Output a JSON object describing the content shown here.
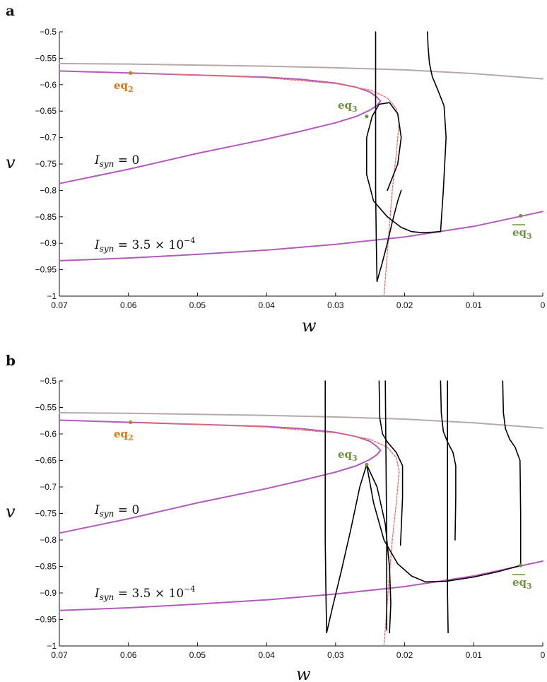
{
  "colors": {
    "purple": "#b05cb8",
    "gray": "#b7a9a9",
    "red_dashed": "#e8706a",
    "orange": "#d47a1a",
    "green": "#6f9440",
    "black": "#000000"
  },
  "chart_data": [
    {
      "type": "line",
      "panel_label": "a",
      "xlabel": "w",
      "ylabel": "v",
      "x_reversed": true,
      "xlim": [
        0.07,
        0
      ],
      "ylim": [
        -1,
        -0.5
      ],
      "x_ticks": [
        "0.07",
        "0.06",
        "0.05",
        "0.04",
        "0.03",
        "0.02",
        "0.01",
        "0"
      ],
      "y_ticks": [
        "-0.5",
        "-0.55",
        "-0.6",
        "-0.65",
        "-0.7",
        "-0.75",
        "-0.8",
        "-0.85",
        "-0.9",
        "-0.95",
        "-1"
      ],
      "annotations": {
        "isyn0": {
          "text": "I_syn = 0",
          "pre": "I",
          "sub": "syn",
          "post": " = 0"
        },
        "isyn35": {
          "text": "I_syn = 3.5 × 10^-4",
          "pre": "I",
          "sub": "syn",
          "mid": " = 3.5 × 10",
          "sup": "−4"
        },
        "eq2": {
          "text": "eq2",
          "main": "eq",
          "sub": "2"
        },
        "eq3": {
          "text": "eq3",
          "main": "eq",
          "sub": "3"
        },
        "eq3bar": {
          "text": "eq3 (bar)",
          "main": "eq",
          "sub": "3"
        }
      },
      "series": [
        {
          "role": "upper-nullcline-gray",
          "x": [
            0.07,
            0.06,
            0.05,
            0.04,
            0.03,
            0.02,
            0.01,
            0
          ],
          "y": [
            -0.56,
            -0.561,
            -0.563,
            -0.565,
            -0.568,
            -0.572,
            -0.579,
            -0.589
          ]
        },
        {
          "role": "nullcline-isyn0-upper",
          "x": [
            0.07,
            0.06,
            0.05,
            0.04,
            0.035,
            0.03,
            0.027,
            0.025,
            0.024,
            0.0235
          ],
          "y": [
            -0.574,
            -0.578,
            -0.582,
            -0.586,
            -0.59,
            -0.597,
            -0.605,
            -0.614,
            -0.624,
            -0.631
          ]
        },
        {
          "role": "nullcline-isyn0-lower",
          "x": [
            0.0235,
            0.024,
            0.025,
            0.027,
            0.03,
            0.035,
            0.04,
            0.05,
            0.06,
            0.07
          ],
          "y": [
            -0.631,
            -0.639,
            -0.648,
            -0.66,
            -0.672,
            -0.688,
            -0.703,
            -0.73,
            -0.76,
            -0.787
          ]
        },
        {
          "role": "nullcline-isyn35",
          "x": [
            0.07,
            0.06,
            0.05,
            0.04,
            0.03,
            0.02,
            0.01,
            0
          ],
          "y": [
            -0.933,
            -0.928,
            -0.921,
            -0.913,
            -0.902,
            -0.888,
            -0.868,
            -0.84
          ]
        },
        {
          "role": "red-dashed",
          "x": [
            0.058,
            0.05,
            0.04,
            0.03,
            0.025,
            0.0225,
            0.0212,
            0.0208,
            0.0212,
            0.0218,
            0.0224,
            0.023
          ],
          "y": [
            -0.578,
            -0.582,
            -0.587,
            -0.598,
            -0.61,
            -0.625,
            -0.645,
            -0.67,
            -0.73,
            -0.8,
            -0.9,
            -1
          ]
        },
        {
          "role": "trajectory-a-1",
          "x": [
            0.0242,
            0.0242,
            0.0242,
            0.0242,
            0.0241,
            0.024
          ],
          "y": [
            -0.5,
            -0.6,
            -0.7,
            -0.8,
            -0.9,
            -0.972
          ]
        },
        {
          "role": "trajectory-a-2",
          "x": [
            0.024,
            0.0233,
            0.0225,
            0.0218,
            0.021,
            0.0205
          ],
          "y": [
            -0.972,
            -0.94,
            -0.9,
            -0.86,
            -0.82,
            -0.8
          ]
        },
        {
          "role": "trajectory-a-3",
          "x": [
            0.0167,
            0.0166,
            0.0164,
            0.016,
            0.0152,
            0.0143,
            0.014,
            0.0144,
            0.0148
          ],
          "y": [
            -0.5,
            -0.53,
            -0.56,
            -0.585,
            -0.61,
            -0.64,
            -0.7,
            -0.8,
            -0.878
          ]
        },
        {
          "role": "trajectory-a-4",
          "x": [
            0.0148,
            0.016,
            0.0175,
            0.019,
            0.0205,
            0.0225,
            0.0245,
            0.0255,
            0.0255,
            0.0247,
            0.0237,
            0.0222,
            0.021,
            0.0205,
            0.021,
            0.0225
          ],
          "y": [
            -0.878,
            -0.879,
            -0.88,
            -0.878,
            -0.87,
            -0.85,
            -0.82,
            -0.77,
            -0.7,
            -0.66,
            -0.637,
            -0.634,
            -0.655,
            -0.7,
            -0.75,
            -0.8
          ]
        }
      ],
      "points": [
        {
          "label": "eq2",
          "x": 0.0597,
          "y": -0.578
        },
        {
          "label": "eq3",
          "x": 0.0255,
          "y": -0.66
        },
        {
          "label": "eq3bar",
          "x": 0.0032,
          "y": -0.848
        }
      ]
    },
    {
      "type": "line",
      "panel_label": "b",
      "xlabel": "w",
      "ylabel": "v",
      "x_reversed": true,
      "xlim": [
        0.07,
        0
      ],
      "ylim": [
        -1,
        -0.5
      ],
      "x_ticks": [
        "0.07",
        "0.06",
        "0.05",
        "0.04",
        "0.03",
        "0.02",
        "0.01",
        "0"
      ],
      "y_ticks": [
        "-0.5",
        "-0.55",
        "-0.6",
        "-0.65",
        "-0.7",
        "-0.75",
        "-0.8",
        "-0.85",
        "-0.9",
        "-0.95",
        "-1"
      ],
      "annotations": {
        "isyn0": {
          "text": "I_syn = 0",
          "pre": "I",
          "sub": "syn",
          "post": " = 0"
        },
        "isyn35": {
          "text": "I_syn = 3.5 × 10^-4",
          "pre": "I",
          "sub": "syn",
          "mid": " = 3.5 × 10",
          "sup": "−4"
        },
        "eq2": {
          "text": "eq2",
          "main": "eq",
          "sub": "2"
        },
        "eq3": {
          "text": "eq3",
          "main": "eq",
          "sub": "3"
        },
        "eq3bar": {
          "text": "eq3 (bar)",
          "main": "eq",
          "sub": "3"
        }
      },
      "series": [
        {
          "role": "upper-nullcline-gray",
          "x": [
            0.07,
            0.06,
            0.05,
            0.04,
            0.03,
            0.02,
            0.01,
            0
          ],
          "y": [
            -0.56,
            -0.561,
            -0.563,
            -0.565,
            -0.568,
            -0.572,
            -0.579,
            -0.589
          ]
        },
        {
          "role": "nullcline-isyn0-upper",
          "x": [
            0.07,
            0.06,
            0.05,
            0.04,
            0.035,
            0.03,
            0.027,
            0.025,
            0.024,
            0.0235
          ],
          "y": [
            -0.574,
            -0.578,
            -0.582,
            -0.586,
            -0.59,
            -0.597,
            -0.605,
            -0.614,
            -0.624,
            -0.631
          ]
        },
        {
          "role": "nullcline-isyn0-lower",
          "x": [
            0.0235,
            0.024,
            0.025,
            0.027,
            0.03,
            0.035,
            0.04,
            0.05,
            0.06,
            0.07
          ],
          "y": [
            -0.631,
            -0.639,
            -0.648,
            -0.66,
            -0.672,
            -0.688,
            -0.703,
            -0.73,
            -0.76,
            -0.787
          ]
        },
        {
          "role": "nullcline-isyn35",
          "x": [
            0.07,
            0.06,
            0.05,
            0.04,
            0.03,
            0.02,
            0.01,
            0
          ],
          "y": [
            -0.933,
            -0.928,
            -0.921,
            -0.913,
            -0.902,
            -0.888,
            -0.868,
            -0.84
          ]
        },
        {
          "role": "red-dashed",
          "x": [
            0.058,
            0.05,
            0.04,
            0.03,
            0.025,
            0.0225,
            0.0212,
            0.0208,
            0.0212,
            0.0218,
            0.0224,
            0.023
          ],
          "y": [
            -0.578,
            -0.582,
            -0.587,
            -0.598,
            -0.61,
            -0.625,
            -0.645,
            -0.67,
            -0.73,
            -0.8,
            -0.9,
            -1
          ]
        },
        {
          "role": "trajectory-b-1",
          "x": [
            0.0315,
            0.0315,
            0.0315,
            0.0315,
            0.0314,
            0.0313
          ],
          "y": [
            -0.5,
            -0.6,
            -0.7,
            -0.8,
            -0.9,
            -0.975
          ]
        },
        {
          "role": "trajectory-b-2",
          "x": [
            0.0313,
            0.0305,
            0.0292,
            0.0278,
            0.0265,
            0.0255
          ],
          "y": [
            -0.975,
            -0.93,
            -0.86,
            -0.78,
            -0.7,
            -0.658
          ]
        },
        {
          "role": "trajectory-b-3",
          "x": [
            0.0255,
            0.024,
            0.0228,
            0.0222,
            0.022,
            0.0222
          ],
          "y": [
            -0.658,
            -0.7,
            -0.77,
            -0.85,
            -0.92,
            -0.975
          ]
        },
        {
          "role": "trajectory-b-4",
          "x": [
            0.0228,
            0.0227,
            0.0226,
            0.0226,
            0.0226
          ],
          "y": [
            -0.5,
            -0.65,
            -0.8,
            -0.9,
            -0.97
          ]
        },
        {
          "role": "trajectory-b-5",
          "x": [
            0.0237,
            0.0236,
            0.0232,
            0.0225,
            0.0212,
            0.0203,
            0.0203,
            0.0206
          ],
          "y": [
            -0.5,
            -0.57,
            -0.6,
            -0.615,
            -0.635,
            -0.66,
            -0.72,
            -0.81
          ]
        },
        {
          "role": "trajectory-b-6",
          "x": [
            0.0255,
            0.0245,
            0.023,
            0.021,
            0.019,
            0.017,
            0.014,
            0.01,
            0.0065,
            0.0032
          ],
          "y": [
            -0.658,
            -0.73,
            -0.8,
            -0.845,
            -0.868,
            -0.879,
            -0.878,
            -0.87,
            -0.86,
            -0.848
          ]
        },
        {
          "role": "trajectory-b-7",
          "x": [
            0.0138,
            0.0138,
            0.0138,
            0.0138,
            0.0137
          ],
          "y": [
            -0.5,
            -0.65,
            -0.8,
            -0.9,
            -0.975
          ]
        },
        {
          "role": "trajectory-b-8",
          "x": [
            0.0148,
            0.0147,
            0.0144,
            0.0138,
            0.013,
            0.0126,
            0.0126,
            0.0127
          ],
          "y": [
            -0.5,
            -0.56,
            -0.595,
            -0.615,
            -0.635,
            -0.66,
            -0.72,
            -0.8
          ]
        },
        {
          "role": "trajectory-b-9",
          "x": [
            0.0058,
            0.0057,
            0.0054,
            0.0048,
            0.004,
            0.0033,
            0.0032,
            0.0032
          ],
          "y": [
            -0.5,
            -0.56,
            -0.59,
            -0.61,
            -0.625,
            -0.65,
            -0.75,
            -0.848
          ]
        }
      ],
      "points": [
        {
          "label": "eq2",
          "x": 0.0597,
          "y": -0.578
        },
        {
          "label": "eq3",
          "x": 0.0255,
          "y": -0.658
        },
        {
          "label": "eq3bar",
          "x": 0.0032,
          "y": -0.848
        }
      ]
    }
  ]
}
